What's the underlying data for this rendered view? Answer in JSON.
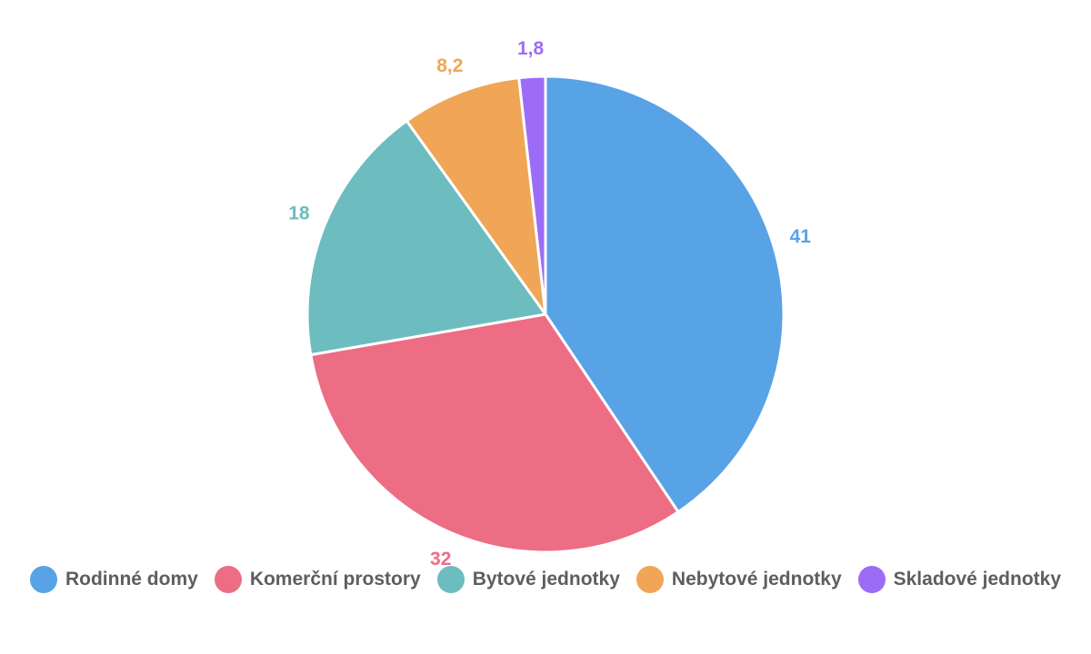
{
  "chart_data": {
    "type": "pie",
    "categories": [
      "Rodinné domy",
      "Komerční prostory",
      "Bytové jednotky",
      "Nebytové jednotky",
      "Skladové jednotky"
    ],
    "values": [
      41,
      32,
      18,
      8.2,
      1.8
    ],
    "value_labels": [
      "41",
      "32",
      "18",
      "8,2",
      "1,8"
    ],
    "colors": [
      "#58a2e6",
      "#ec6d84",
      "#6dbcbf",
      "#f0a656",
      "#9d6cf6"
    ],
    "legend_position": "bottom",
    "start_angle": "top, clockwise"
  }
}
